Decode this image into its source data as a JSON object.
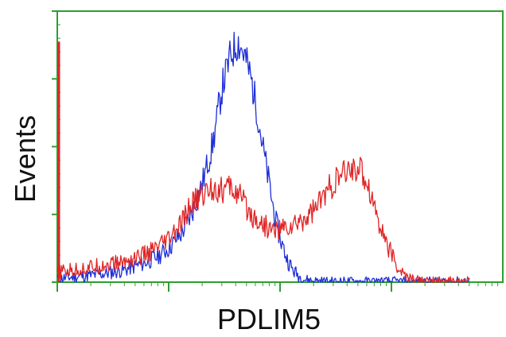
{
  "chart_data": {
    "type": "line",
    "xlabel": "PDLIM5",
    "ylabel": "Events",
    "x_scale": "log",
    "xlim": [
      1,
      10000
    ],
    "ylim": [
      0,
      4
    ],
    "x_ticks": [
      1,
      10,
      100,
      1000
    ],
    "y_ticks": [
      0,
      1,
      2,
      3,
      4
    ],
    "grid": false,
    "colors": {
      "axes": "#2e9e2e",
      "blue_series": "#1f2fd6",
      "red_series": "#e02525"
    },
    "series": [
      {
        "color": "#1f2fd6",
        "x": [
          1,
          1.5,
          2.5,
          4,
          6,
          8,
          10,
          13,
          16,
          20,
          25,
          30,
          36,
          42,
          48,
          55,
          62,
          70,
          80,
          90,
          100,
          115,
          130,
          150,
          175,
          200,
          260,
          350,
          500,
          1000,
          2000,
          5000
        ],
        "y": [
          0.05,
          0.08,
          0.12,
          0.18,
          0.28,
          0.38,
          0.5,
          0.72,
          1.0,
          1.45,
          2.05,
          2.85,
          3.35,
          3.55,
          3.35,
          3.0,
          2.55,
          2.0,
          1.45,
          0.95,
          0.65,
          0.35,
          0.18,
          0.08,
          0.03,
          0.02,
          0.01,
          0.01,
          0.01,
          0.01,
          0.01,
          0.01
        ]
      },
      {
        "color": "#e02525",
        "x": [
          1,
          1.5,
          2.5,
          4,
          6,
          8,
          10,
          13,
          16,
          20,
          25,
          30,
          36,
          42,
          48,
          55,
          65,
          80,
          100,
          130,
          170,
          220,
          280,
          350,
          420,
          500,
          600,
          700,
          800,
          950,
          1100,
          1300,
          1500,
          1800,
          2200,
          3000,
          5000
        ],
        "y": [
          0.15,
          0.18,
          0.25,
          0.3,
          0.4,
          0.5,
          0.62,
          0.85,
          1.15,
          1.3,
          1.4,
          1.35,
          1.4,
          1.3,
          1.15,
          1.0,
          0.9,
          0.78,
          0.78,
          0.82,
          0.95,
          1.15,
          1.4,
          1.55,
          1.65,
          1.7,
          1.5,
          1.15,
          0.8,
          0.5,
          0.25,
          0.1,
          0.04,
          0.02,
          0.01,
          0.01,
          0.01
        ]
      }
    ]
  }
}
